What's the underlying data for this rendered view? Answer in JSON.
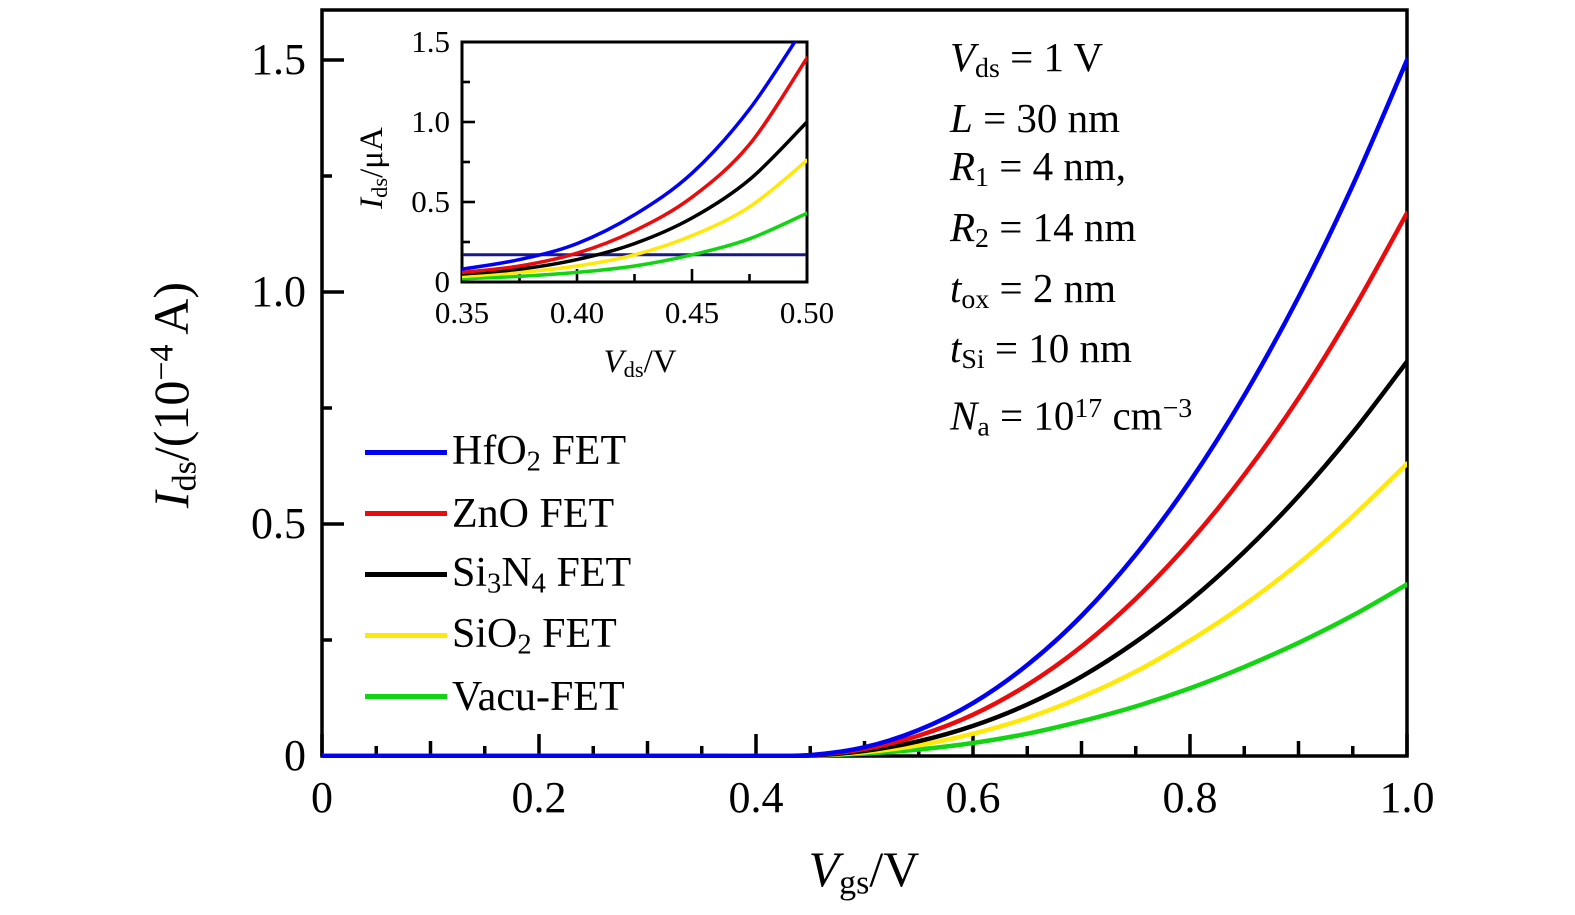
{
  "figure": {
    "description": "Transfer characteristics of five FET types with inset zoom near threshold",
    "background": "#ffffff",
    "axis_color": "#000000"
  },
  "main_axis": {
    "x_title_segments": [
      {
        "t": "V",
        "v": "i"
      },
      {
        "t": "gs",
        "v": "sub"
      },
      {
        "t": "/V"
      }
    ],
    "y_title_segments": [
      {
        "t": "I",
        "v": "i"
      },
      {
        "t": "ds",
        "v": "sub"
      },
      {
        "t": "/(10"
      },
      {
        "t": "−4",
        "v": "sup"
      },
      {
        "t": " A)"
      }
    ],
    "x_tick_labels": [
      "0",
      "0.2",
      "0.4",
      "0.6",
      "0.8",
      "1.0"
    ],
    "y_tick_labels": [
      "0",
      "0.5",
      "1.0",
      "1.5"
    ]
  },
  "inset_axis": {
    "x_title_segments": [
      {
        "t": "V",
        "v": "i"
      },
      {
        "t": "ds",
        "v": "sub"
      },
      {
        "t": "/V"
      }
    ],
    "y_title_segments": [
      {
        "t": "I",
        "v": "i"
      },
      {
        "t": "ds",
        "v": "sub"
      },
      {
        "t": "/μA"
      }
    ],
    "x_tick_labels": [
      "0.35",
      "0.40",
      "0.45",
      "0.50"
    ],
    "y_tick_labels": [
      "0",
      "0.5",
      "1.0",
      "1.5"
    ]
  },
  "legend": {
    "items": [
      {
        "name": "HfO2 FET",
        "color": "#0202f2",
        "segments": [
          {
            "t": "HfO"
          },
          {
            "t": "2",
            "v": "sub"
          },
          {
            "t": " FET"
          }
        ]
      },
      {
        "name": "ZnO FET",
        "color": "#ea0c0c",
        "segments": [
          {
            "t": "ZnO FET"
          }
        ]
      },
      {
        "name": "Si3N4 FET",
        "color": "#000000",
        "segments": [
          {
            "t": "Si"
          },
          {
            "t": "3",
            "v": "sub"
          },
          {
            "t": "N"
          },
          {
            "t": "4",
            "v": "sub"
          },
          {
            "t": " FET"
          }
        ]
      },
      {
        "name": "SiO2 FET",
        "color": "#ffe80a",
        "segments": [
          {
            "t": "SiO"
          },
          {
            "t": "2",
            "v": "sub"
          },
          {
            "t": " FET"
          }
        ]
      },
      {
        "name": "Vacu-FET",
        "color": "#12d412",
        "segments": [
          {
            "t": "Vacu-FET"
          }
        ]
      }
    ]
  },
  "annotation": {
    "lines": [
      {
        "text": "V_ds = 1 V",
        "segments": [
          {
            "t": "V",
            "v": "i"
          },
          {
            "t": "ds",
            "v": "sub"
          },
          {
            "t": " = 1 V"
          }
        ]
      },
      {
        "text": "L = 30 nm",
        "segments": [
          {
            "t": "L",
            "v": "i"
          },
          {
            "t": " = 30 nm"
          }
        ]
      },
      {
        "text": "R_1 = 4 nm,",
        "segments": [
          {
            "t": "R",
            "v": "i"
          },
          {
            "t": "1",
            "v": "sub"
          },
          {
            "t": " = 4 nm,"
          }
        ]
      },
      {
        "text": "R_2 = 14 nm",
        "segments": [
          {
            "t": "R",
            "v": "i"
          },
          {
            "t": "2",
            "v": "sub"
          },
          {
            "t": " = 14 nm"
          }
        ]
      },
      {
        "text": "t_ox = 2 nm",
        "segments": [
          {
            "t": "t",
            "v": "i"
          },
          {
            "t": "ox",
            "v": "sub"
          },
          {
            "t": " = 2 nm"
          }
        ]
      },
      {
        "text": "t_Si = 10 nm",
        "segments": [
          {
            "t": "t",
            "v": "i"
          },
          {
            "t": "Si",
            "v": "sub"
          },
          {
            "t": " = 10 nm"
          }
        ]
      },
      {
        "text": "N_a = 10^17 cm^-3",
        "segments": [
          {
            "t": "N",
            "v": "i"
          },
          {
            "t": "a",
            "v": "sub"
          },
          {
            "t": " = 10"
          },
          {
            "t": "17",
            "v": "sup"
          },
          {
            "t": " cm"
          },
          {
            "t": "−3",
            "v": "sup"
          }
        ]
      }
    ]
  },
  "chart_data": [
    {
      "id": "main",
      "type": "line",
      "title": "",
      "xlabel": "V_gs/V",
      "ylabel": "I_ds/(10^-4 A)",
      "xlim": [
        0,
        1.0
      ],
      "ylim": [
        0,
        1.61
      ],
      "x_ticks": [
        0,
        0.2,
        0.4,
        0.6,
        0.8,
        1.0
      ],
      "y_ticks": [
        0,
        0.5,
        1.0,
        1.5
      ],
      "x_minor_step": 0.05,
      "y_minor_step": 0.25,
      "grid": false,
      "legend_position": "center-left",
      "x": [
        0,
        0.05,
        0.1,
        0.15,
        0.2,
        0.25,
        0.3,
        0.35,
        0.4,
        0.45,
        0.5,
        0.55,
        0.6,
        0.65,
        0.7,
        0.75,
        0.8,
        0.85,
        0.9,
        0.95,
        1.0
      ],
      "series": [
        {
          "name": "HfO2 FET",
          "color": "#0202f2",
          "values": [
            0,
            0,
            0,
            0,
            0,
            0,
            0,
            0,
            0,
            0.002,
            0.019,
            0.056,
            0.114,
            0.196,
            0.302,
            0.434,
            0.592,
            0.777,
            0.989,
            1.23,
            1.5
          ]
        },
        {
          "name": "ZnO FET",
          "color": "#ea0c0c",
          "values": [
            0,
            0,
            0,
            0,
            0,
            0,
            0,
            0,
            0,
            0.002,
            0.015,
            0.044,
            0.089,
            0.153,
            0.236,
            0.339,
            0.462,
            0.606,
            0.771,
            0.96,
            1.17
          ]
        },
        {
          "name": "Si3N4 FET",
          "color": "#000000",
          "values": [
            0,
            0,
            0,
            0,
            0,
            0,
            0,
            0,
            0,
            0.001,
            0.011,
            0.032,
            0.065,
            0.111,
            0.171,
            0.246,
            0.335,
            0.44,
            0.56,
            0.697,
            0.85
          ]
        },
        {
          "name": "SiO2 FET",
          "color": "#ffe80a",
          "values": [
            0,
            0,
            0,
            0,
            0,
            0,
            0,
            0,
            0,
            0.001,
            0.008,
            0.023,
            0.048,
            0.082,
            0.127,
            0.182,
            0.249,
            0.326,
            0.415,
            0.517,
            0.63
          ]
        },
        {
          "name": "Vacu-FET",
          "color": "#12d412",
          "values": [
            0,
            0,
            0,
            0,
            0,
            0,
            0,
            0,
            0,
            0.001,
            0.005,
            0.014,
            0.028,
            0.048,
            0.075,
            0.107,
            0.146,
            0.192,
            0.244,
            0.303,
            0.37
          ]
        }
      ]
    },
    {
      "id": "inset",
      "type": "line",
      "title": "",
      "xlabel": "V_ds/V",
      "ylabel": "I_ds/uA",
      "xlim": [
        0.35,
        0.5
      ],
      "ylim": [
        0,
        1.5
      ],
      "x_ticks": [
        0.35,
        0.4,
        0.45,
        0.5
      ],
      "y_ticks": [
        0,
        0.5,
        1.0,
        1.5
      ],
      "x_minor_step": 0.025,
      "y_minor_step": 0.25,
      "grid": false,
      "reference_line_y": 0.17,
      "reference_line_color": "#1a1a85",
      "x": [
        0.35,
        0.375,
        0.4,
        0.425,
        0.45,
        0.475,
        0.5
      ],
      "series": [
        {
          "name": "HfO2 FET",
          "color": "#0202f2",
          "values": [
            0.08,
            0.14,
            0.24,
            0.42,
            0.68,
            1.08,
            1.62
          ]
        },
        {
          "name": "ZnO FET",
          "color": "#ea0c0c",
          "values": [
            0.06,
            0.1,
            0.18,
            0.32,
            0.53,
            0.86,
            1.4
          ]
        },
        {
          "name": "Si3N4 FET",
          "color": "#000000",
          "values": [
            0.05,
            0.08,
            0.14,
            0.24,
            0.4,
            0.64,
            1.0
          ]
        },
        {
          "name": "SiO2 FET",
          "color": "#ffe80a",
          "values": [
            0.035,
            0.06,
            0.1,
            0.17,
            0.29,
            0.47,
            0.76
          ]
        },
        {
          "name": "Vacu-FET",
          "color": "#12d412",
          "values": [
            0.02,
            0.035,
            0.06,
            0.1,
            0.17,
            0.27,
            0.43
          ]
        }
      ]
    }
  ]
}
